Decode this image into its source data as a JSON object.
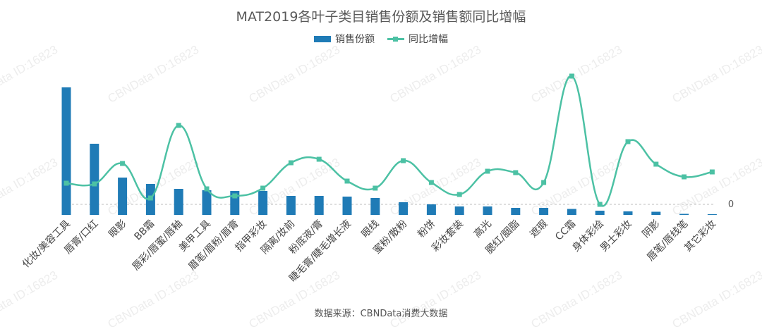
{
  "chart_data": {
    "type": "bar",
    "title": "MAT2019各叶子类目销售份额及销售额同比增幅",
    "categories": [
      "化妆/美容工具",
      "唇膏/口红",
      "眼影",
      "BB霜",
      "唇彩/唇蜜/唇釉",
      "美甲工具",
      "眉笔/眉粉/眉膏",
      "指甲彩妆",
      "隔离/妆前",
      "粉底液/膏",
      "睫毛膏/睫毛增长液",
      "眼线",
      "蜜粉/散粉",
      "粉饼",
      "彩妆套装",
      "高光",
      "腮红/胭脂",
      "遮瑕",
      "CC霜",
      "身体彩绘",
      "男士彩妆",
      "阴影",
      "唇笔/唇线笔",
      "其它彩妆"
    ],
    "series": [
      {
        "name": "销售份额",
        "type": "bar",
        "color": "#1f7bb6",
        "values": [
          18.1,
          10.1,
          5.3,
          4.4,
          3.7,
          3.5,
          3.4,
          3.4,
          2.7,
          2.7,
          2.6,
          2.4,
          1.8,
          1.5,
          1.2,
          1.2,
          1.0,
          1.0,
          0.85,
          0.6,
          0.5,
          0.45,
          0.15,
          0.08
        ]
      },
      {
        "name": "同比增幅",
        "type": "line",
        "color": "#4cc1a4",
        "values": [
          30,
          29,
          58,
          9,
          112,
          22,
          12,
          23,
          59,
          64,
          33,
          23,
          62,
          31,
          14,
          47,
          45,
          31,
          182,
          0,
          89,
          57,
          39,
          46
        ]
      }
    ],
    "zero_label": "0",
    "legend_position": "top-center",
    "grid": false
  },
  "source_text": "数据来源：CBNData消费大数据",
  "watermark_text": "CBNData ID:16823"
}
